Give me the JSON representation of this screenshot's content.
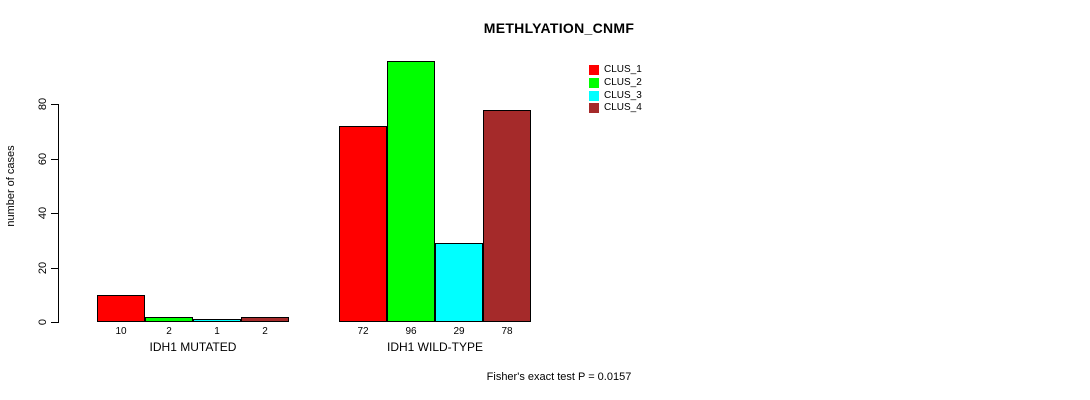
{
  "title": "METHLYATION_CNMF",
  "footer": "Fisher's exact test P = 0.0157",
  "chart_data": {
    "type": "bar",
    "title": "METHLYATION_CNMF",
    "xlabel": "",
    "ylabel": "number of cases",
    "ylim": [
      0,
      100
    ],
    "yticks": [
      0,
      20,
      40,
      60,
      80
    ],
    "grid": false,
    "legend_position": "top-right",
    "categories": [
      "IDH1 MUTATED",
      "IDH1 WILD-TYPE"
    ],
    "series": [
      {
        "name": "CLUS_1",
        "color": "#ff0000",
        "values": [
          10,
          72
        ]
      },
      {
        "name": "CLUS_2",
        "color": "#00ff00",
        "values": [
          2,
          96
        ]
      },
      {
        "name": "CLUS_3",
        "color": "#00ffff",
        "values": [
          1,
          29
        ]
      },
      {
        "name": "CLUS_4",
        "color": "#a52a2a",
        "values": [
          2,
          78
        ]
      }
    ],
    "bar_value_labels": {
      "IDH1 MUTATED": [
        10,
        2,
        1,
        2
      ],
      "IDH1 WILD-TYPE": [
        72,
        96,
        29,
        78
      ]
    },
    "annotation": "Fisher's exact test P = 0.0157"
  }
}
